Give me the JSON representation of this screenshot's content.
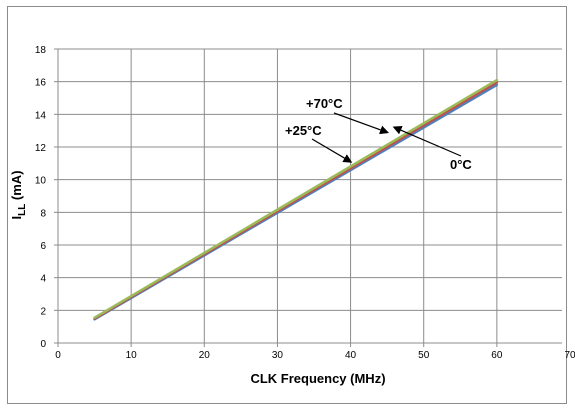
{
  "chart_data": {
    "type": "line",
    "title": "",
    "xlabel": "CLK Frequency (MHz)",
    "ylabel": {
      "main": "I",
      "sub": "LL",
      "unit": " (mA)"
    },
    "xlim": [
      0,
      70
    ],
    "ylim": [
      0,
      18
    ],
    "xticks": [
      0,
      10,
      20,
      30,
      40,
      50,
      60,
      70
    ],
    "yticks": [
      0,
      2,
      4,
      6,
      8,
      10,
      12,
      14,
      16,
      18
    ],
    "grid": true,
    "legend": "none",
    "series": [
      {
        "name": "0°C",
        "color": "#4f81bd",
        "x": [
          5,
          60
        ],
        "y": [
          1.45,
          15.8
        ]
      },
      {
        "name": "+25°C",
        "color": "#c0504d",
        "x": [
          5,
          60
        ],
        "y": [
          1.5,
          15.95
        ]
      },
      {
        "name": "+70°C",
        "color": "#9bbb59",
        "x": [
          5,
          60
        ],
        "y": [
          1.55,
          16.1
        ]
      }
    ],
    "annotations": [
      {
        "text": "+70°C",
        "series": "+70°C",
        "point": [
          45,
          12.9
        ]
      },
      {
        "text": "+25°C",
        "series": "+25°C",
        "point": [
          40,
          11.1
        ]
      },
      {
        "text": "0°C",
        "series": "0°C",
        "point": [
          46,
          13.2
        ]
      }
    ]
  }
}
